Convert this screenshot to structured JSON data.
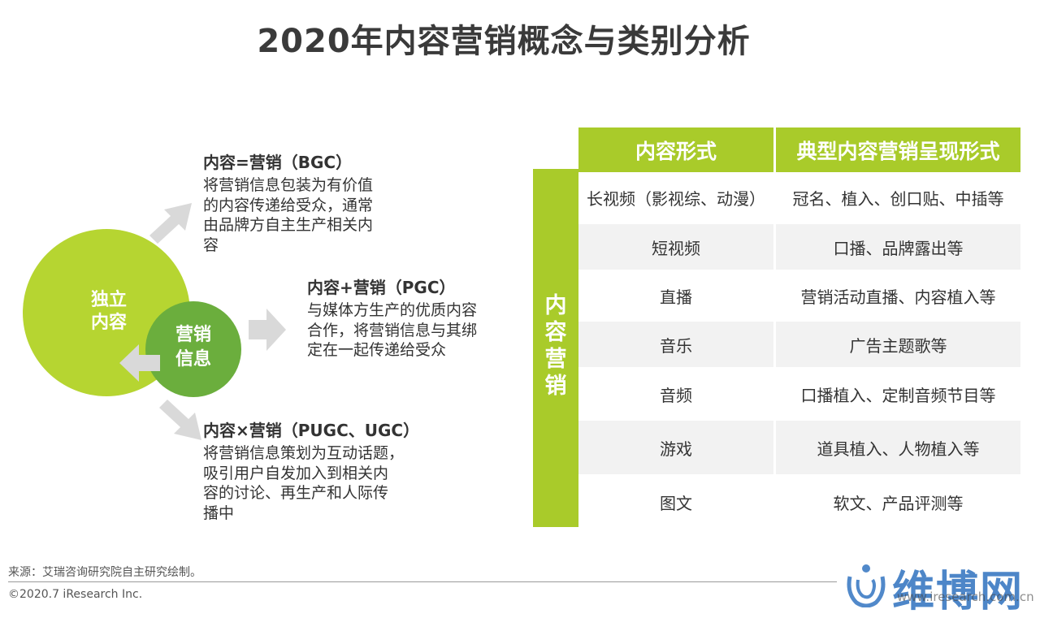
{
  "title": "2020年内容营销概念与类别分析",
  "diagram": {
    "outer_circle": {
      "label": "独立\n内容",
      "color": "#b6d531"
    },
    "inner_circle": {
      "label": "营销\n信息",
      "color": "#6bae3d"
    },
    "blocks": [
      {
        "title": "内容=营销（BGC）",
        "text": "将营销信息包装为有价值\n的内容传递给受众，通常\n由品牌方自主生产相关内\n容"
      },
      {
        "title": "内容+营销（PGC）",
        "text": "与媒体方生产的优质内容\n合作，将营销信息与其绑\n定在一起传递给受众"
      },
      {
        "title": "内容×营销（PUGC、UGC）",
        "text": "将营销信息策划为互动话题，\n吸引用户自发加入到相关内\n容的讨论、再生产和人际传\n播中"
      }
    ],
    "arrow_color": "#d9d9d9"
  },
  "table": {
    "side_label": "内容营销",
    "headers": [
      "内容形式",
      "典型内容营销呈现形式"
    ],
    "rows": [
      [
        "长视频（影视综、动漫）",
        "冠名、植入、创口贴、中插等"
      ],
      [
        "短视频",
        "口播、品牌露出等"
      ],
      [
        "直播",
        "营销活动直播、内容植入等"
      ],
      [
        "音乐",
        "广告主题歌等"
      ],
      [
        "音频",
        "口播植入、定制音频节目等"
      ],
      [
        "游戏",
        "道具植入、人物植入等"
      ],
      [
        "图文",
        "软文、产品评测等"
      ]
    ],
    "accent": "#a9cb2a"
  },
  "footer": {
    "source": "来源：艾瑞咨询研究院自主研究绘制。",
    "copyright": "©2020.7 iResearch Inc."
  },
  "watermark": {
    "text": "维博网",
    "url": "www.iresearch.com.cn",
    "icon": "wave-logo-icon"
  }
}
